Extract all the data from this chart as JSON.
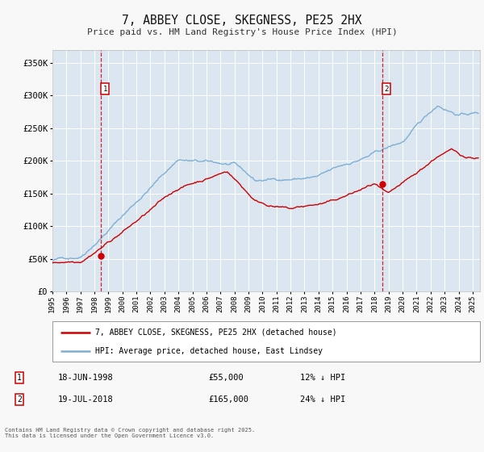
{
  "title": "7, ABBEY CLOSE, SKEGNESS, PE25 2HX",
  "subtitle": "Price paid vs. HM Land Registry's House Price Index (HPI)",
  "ylabel_ticks": [
    "£0",
    "£50K",
    "£100K",
    "£150K",
    "£200K",
    "£250K",
    "£300K",
    "£350K"
  ],
  "ytick_values": [
    0,
    50000,
    100000,
    150000,
    200000,
    250000,
    300000,
    350000
  ],
  "ylim": [
    0,
    370000
  ],
  "xlim_start": 1995.0,
  "xlim_end": 2025.5,
  "fig_bg_color": "#f8f8f8",
  "plot_bg_color": "#dce6f1",
  "grid_color": "#ffffff",
  "property_color": "#cc0000",
  "hpi_color": "#7bafd4",
  "sale1_x": 1998.46,
  "sale1_y": 55000,
  "sale1_label": "1",
  "sale2_x": 2018.54,
  "sale2_y": 165000,
  "sale2_label": "2",
  "legend_line1": "7, ABBEY CLOSE, SKEGNESS, PE25 2HX (detached house)",
  "legend_line2": "HPI: Average price, detached house, East Lindsey",
  "footer": "Contains HM Land Registry data © Crown copyright and database right 2025.\nThis data is licensed under the Open Government Licence v3.0.",
  "xticks": [
    1995,
    1996,
    1997,
    1998,
    1999,
    2000,
    2001,
    2002,
    2003,
    2004,
    2005,
    2006,
    2007,
    2008,
    2009,
    2010,
    2011,
    2012,
    2013,
    2014,
    2015,
    2016,
    2017,
    2018,
    2019,
    2020,
    2021,
    2022,
    2023,
    2024,
    2025
  ]
}
